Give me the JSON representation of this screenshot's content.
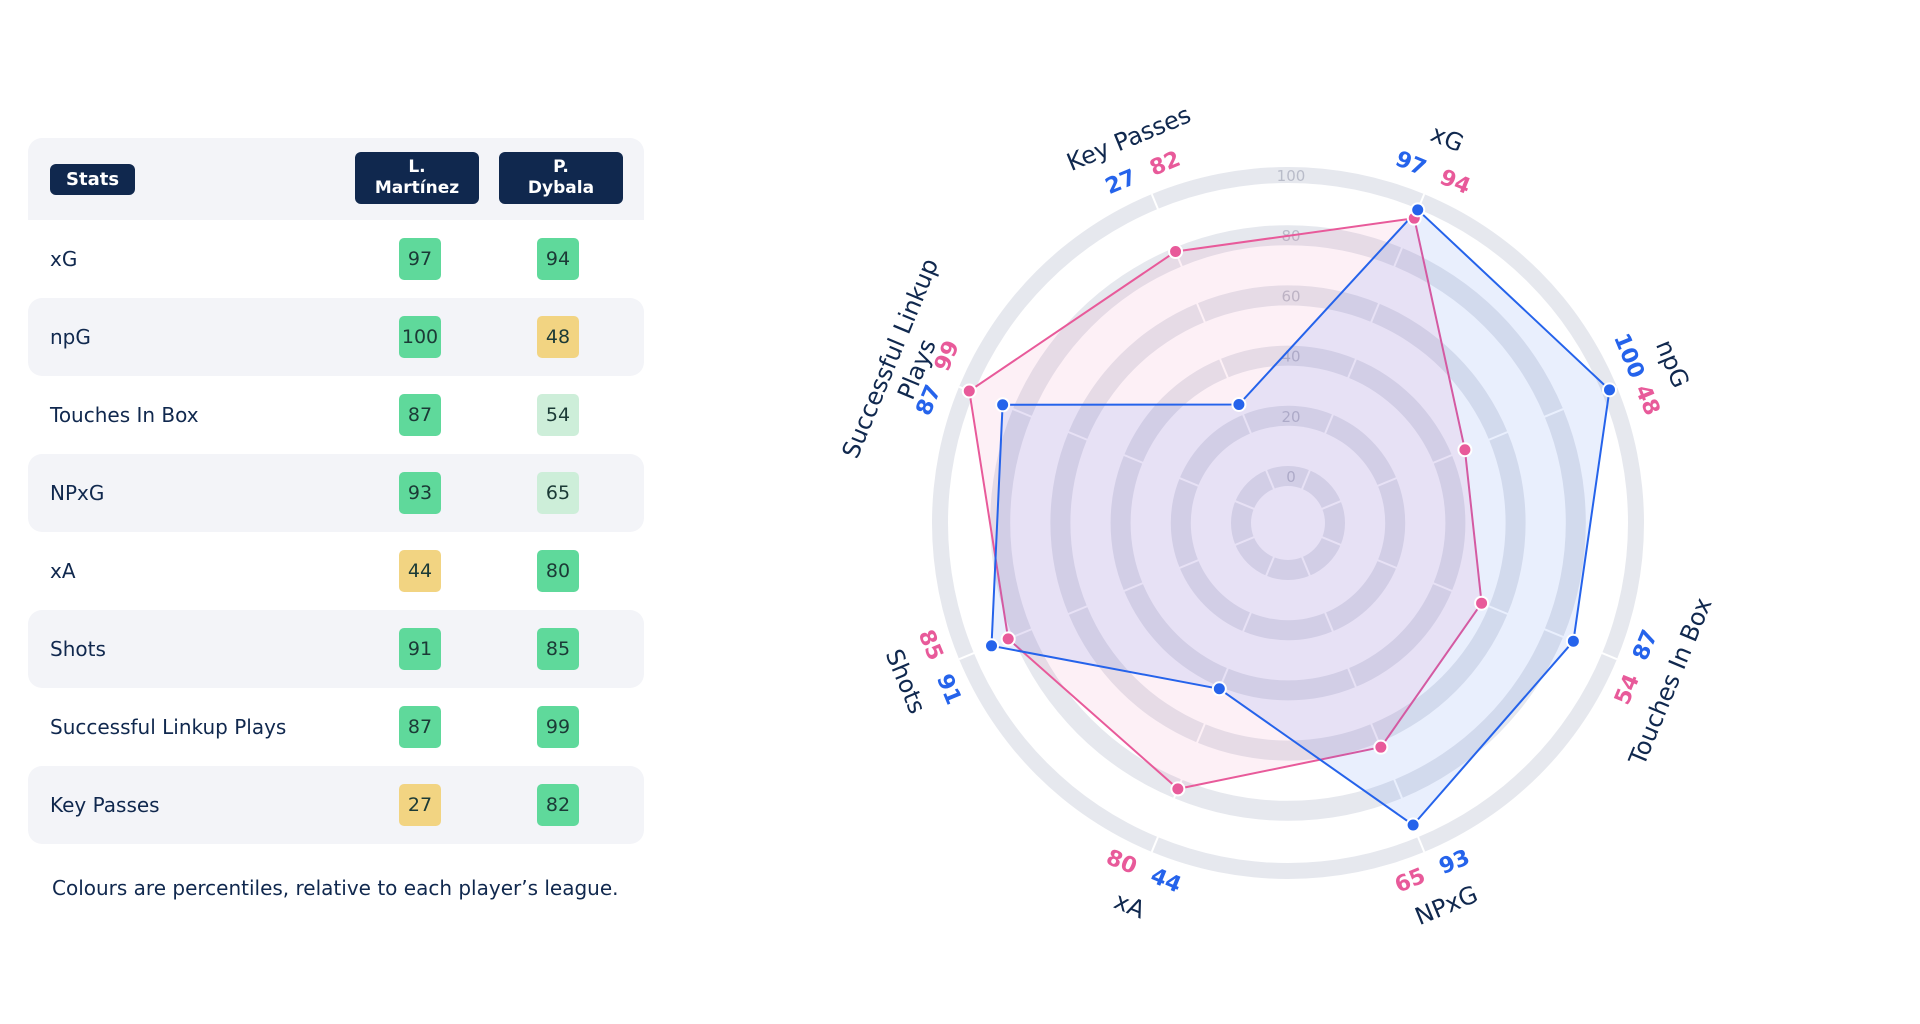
{
  "table": {
    "stats_header": "Stats",
    "players": [
      {
        "line1": "L.",
        "line2": "Martínez",
        "color": "#2563eb"
      },
      {
        "line1": "P.",
        "line2": "Dybala",
        "color": "#e85a9a"
      }
    ],
    "rows": [
      {
        "label": "xG",
        "p1": 97,
        "p2": 94
      },
      {
        "label": "npG",
        "p1": 100,
        "p2": 48
      },
      {
        "label": "Touches In Box",
        "p1": 87,
        "p2": 54
      },
      {
        "label": "NPxG",
        "p1": 93,
        "p2": 65
      },
      {
        "label": "xA",
        "p1": 44,
        "p2": 80
      },
      {
        "label": "Shots",
        "p1": 91,
        "p2": 85
      },
      {
        "label": "Successful Linkup Plays",
        "p1": 87,
        "p2": 99
      },
      {
        "label": "Key Passes",
        "p1": 27,
        "p2": 82
      }
    ],
    "footnote": "Colours are percentiles, relative to each player’s league."
  },
  "colors": {
    "navy": "#10284e",
    "high": "#5fd99b",
    "mid": "#cdeed9",
    "low": "#f2d482",
    "player1": "#2563eb",
    "player2": "#e85a9a"
  },
  "chart_data": {
    "type": "radar",
    "axes": [
      "xG",
      "npG",
      "Touches In Box",
      "NPxG",
      "xA",
      "Shots",
      "Successful Linkup Plays",
      "Key Passes"
    ],
    "range": [
      0,
      100
    ],
    "ticks": [
      0,
      20,
      40,
      60,
      80,
      100
    ],
    "series": [
      {
        "name": "L. Martínez",
        "values": [
          97,
          100,
          87,
          93,
          44,
          91,
          87,
          27
        ]
      },
      {
        "name": "P. Dybala",
        "values": [
          94,
          48,
          54,
          65,
          80,
          85,
          99,
          82
        ]
      }
    ]
  }
}
